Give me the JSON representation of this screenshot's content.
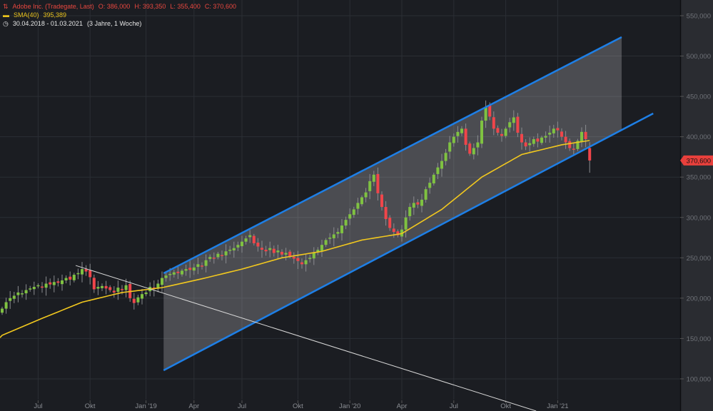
{
  "header": {
    "instrument": "Adobe Inc. (Tradegate, Last)",
    "open": "O: 386,000",
    "high": "H: 393,350",
    "low": "L: 355,400",
    "close": "C: 370,600",
    "sma_label": "SMA(40)",
    "sma_value": "395,389",
    "range": "30.04.2018 - 01.03.2021",
    "range_desc": "(3 Jahre, 1 Woche)"
  },
  "colors": {
    "up": "#7fc241",
    "down": "#f0454a",
    "sma": "#f2c81e",
    "channel": "#1e7fe6",
    "trend": "#d9d9d9",
    "background": "#1b1d22",
    "axis_bg": "#2a2c31"
  },
  "chart_data": {
    "type": "candlestick",
    "interval": "weekly",
    "ylim": [
      50,
      570
    ],
    "yticks": [
      "100,000",
      "150,000",
      "200,000",
      "250,000",
      "300,000",
      "350,000",
      "400,000",
      "450,000",
      "500,000",
      "550,000"
    ],
    "ytick_values": [
      100,
      150,
      200,
      250,
      300,
      350,
      400,
      450,
      500,
      550
    ],
    "xticks": [
      {
        "label": "Jul",
        "week": 9
      },
      {
        "label": "Okt",
        "week": 22
      },
      {
        "label": "Jan '19",
        "week": 36
      },
      {
        "label": "Apr",
        "week": 48
      },
      {
        "label": "Jul",
        "week": 60
      },
      {
        "label": "Okt",
        "week": 74
      },
      {
        "label": "Jan '20",
        "week": 87
      },
      {
        "label": "Apr",
        "week": 100
      },
      {
        "label": "Jul",
        "week": 113
      },
      {
        "label": "Okt",
        "week": 126
      },
      {
        "label": "Jan '21",
        "week": 139
      }
    ],
    "last_price_label": "370,600",
    "last_candle": {
      "open": 386.0,
      "high": 393.35,
      "low": 355.4,
      "close": 370.6
    },
    "closes": [
      187,
      195,
      200,
      203,
      207,
      206,
      210,
      212,
      214,
      216,
      213,
      218,
      217,
      220,
      219,
      222,
      225,
      223,
      229,
      231,
      236,
      233,
      226,
      211,
      214,
      215,
      212,
      210,
      207,
      213,
      210,
      216,
      200,
      194,
      201,
      205,
      207,
      214,
      212,
      218,
      225,
      228,
      230,
      232,
      231,
      234,
      236,
      235,
      238,
      242,
      240,
      247,
      251,
      250,
      255,
      253,
      258,
      260,
      262,
      266,
      270,
      274,
      278,
      268,
      264,
      260,
      258,
      262,
      256,
      259,
      254,
      256,
      252,
      249,
      246,
      242,
      247,
      250,
      256,
      260,
      266,
      272,
      275,
      279,
      282,
      290,
      297,
      304,
      310,
      318,
      325,
      331,
      345,
      353,
      330,
      313,
      298,
      287,
      282,
      278,
      285,
      300,
      313,
      318,
      316,
      322,
      335,
      343,
      353,
      362,
      370,
      380,
      393,
      400,
      406,
      410,
      390,
      379,
      386,
      393,
      420,
      437,
      425,
      410,
      405,
      401,
      410,
      418,
      424,
      405,
      393,
      388,
      392,
      397,
      394,
      399,
      401,
      405,
      410,
      408,
      400,
      393,
      386,
      384,
      395,
      406,
      397,
      370.6
    ],
    "sma40": [
      [
        0,
        154
      ],
      [
        10,
        175
      ],
      [
        20,
        195
      ],
      [
        30,
        207
      ],
      [
        40,
        213
      ],
      [
        50,
        224
      ],
      [
        60,
        236
      ],
      [
        70,
        250
      ],
      [
        80,
        258
      ],
      [
        90,
        272
      ],
      [
        100,
        280
      ],
      [
        110,
        310
      ],
      [
        120,
        350
      ],
      [
        130,
        378
      ],
      [
        140,
        390
      ],
      [
        147,
        395.389
      ]
    ],
    "channel_upper": [
      [
        40.4,
        230.8
      ],
      [
        155,
        523.5
      ]
    ],
    "channel_lower": [
      [
        40.4,
        110.6
      ],
      [
        162.9,
        428.9
      ]
    ],
    "trend_line": [
      [
        18.4,
        240.5
      ],
      [
        133.6,
        60.2
      ]
    ]
  }
}
